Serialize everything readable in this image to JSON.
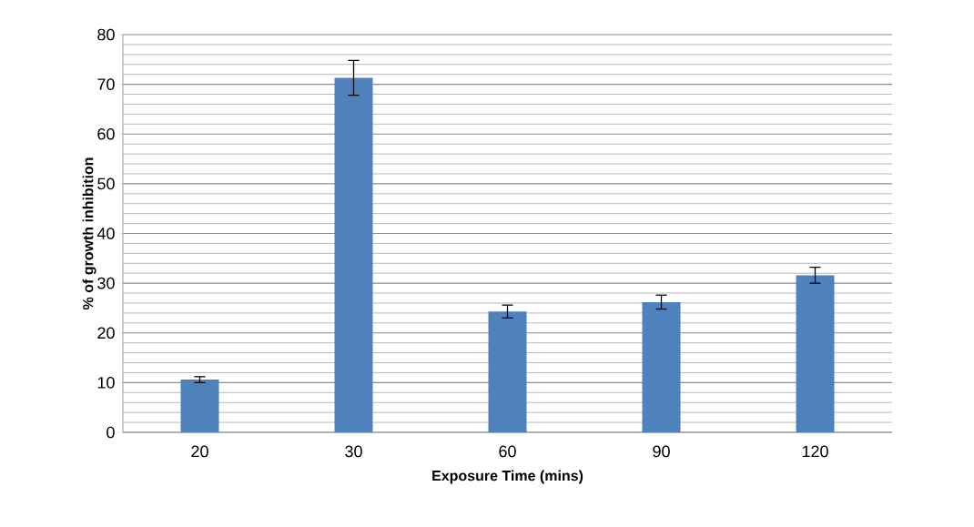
{
  "chart_data": {
    "type": "bar",
    "xlabel": "Exposure Time (mins)",
    "ylabel": "% of growth inhibition",
    "categories": [
      "20",
      "30",
      "60",
      "90",
      "120"
    ],
    "values": [
      10.6,
      71.3,
      24.3,
      26.2,
      31.6
    ],
    "errors": [
      0.6,
      3.5,
      1.3,
      1.4,
      1.6
    ],
    "color": "#4f81bd",
    "ylim": [
      0,
      80
    ],
    "yticks": [
      0,
      10,
      20,
      30,
      40,
      50,
      60,
      70,
      80
    ],
    "grid": "y"
  }
}
